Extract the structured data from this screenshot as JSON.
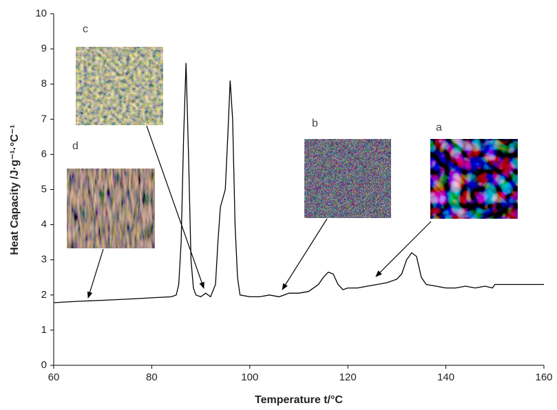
{
  "chart_data": {
    "type": "line",
    "x_label": "Temperature  t/°C",
    "y_label": "Heat Capacity /J·g⁻¹·°C⁻¹",
    "annotations": [
      "c",
      "d",
      "b",
      "a"
    ],
    "color": "#000000",
    "x": [
      60,
      65,
      70,
      75,
      80,
      84,
      85,
      85.5,
      86,
      86.5,
      87,
      87.5,
      88,
      88.5,
      89,
      90,
      91,
      92,
      93,
      93.5,
      94,
      95,
      95.5,
      96,
      96.5,
      97,
      97.5,
      98,
      100,
      102,
      104,
      106,
      108,
      110,
      112,
      114,
      115,
      116,
      117,
      118,
      119,
      120,
      122,
      124,
      126,
      128,
      130,
      131,
      132,
      133,
      134,
      135,
      136,
      138,
      140,
      142,
      144,
      146,
      148,
      149.5,
      150,
      160
    ],
    "values": [
      1.78,
      1.82,
      1.85,
      1.88,
      1.92,
      1.95,
      2.0,
      2.3,
      3.5,
      6.5,
      8.6,
      6.0,
      3.0,
      2.2,
      2.0,
      1.95,
      2.05,
      1.95,
      2.3,
      3.5,
      4.5,
      5.0,
      6.5,
      8.1,
      7.0,
      4.0,
      2.5,
      2.0,
      1.95,
      1.95,
      2.0,
      1.95,
      2.05,
      2.05,
      2.1,
      2.3,
      2.5,
      2.65,
      2.6,
      2.3,
      2.15,
      2.2,
      2.2,
      2.25,
      2.3,
      2.35,
      2.45,
      2.6,
      3.0,
      3.2,
      3.1,
      2.5,
      2.3,
      2.25,
      2.2,
      2.2,
      2.25,
      2.2,
      2.25,
      2.2,
      2.3,
      2.3
    ],
    "xlim": [
      60,
      160
    ],
    "ylim": [
      0,
      10
    ],
    "xticks": [
      60,
      80,
      100,
      120,
      140,
      160
    ],
    "yticks": [
      0,
      1,
      2,
      3,
      4,
      5,
      6,
      7,
      8,
      9,
      10
    ],
    "grid": false
  }
}
